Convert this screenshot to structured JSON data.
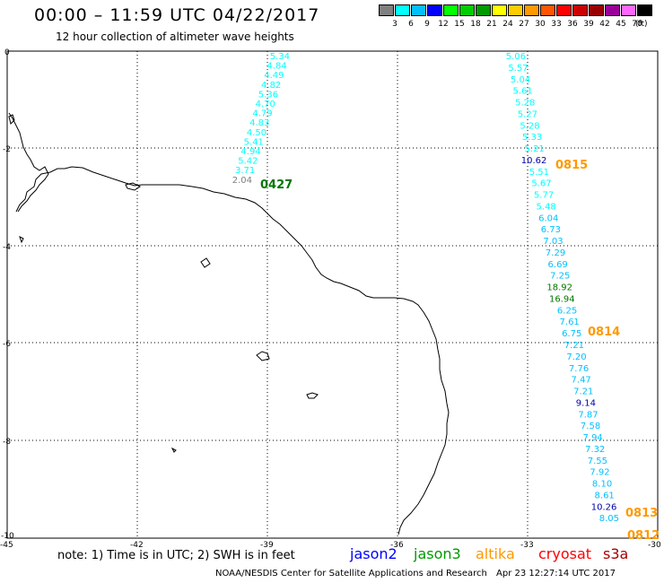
{
  "header": {
    "title": "00:00 – 11:59 UTC 04/22/2017",
    "subtitle": "12 hour collection of altimeter wave heights"
  },
  "colorbar": {
    "unit": "(ft)",
    "bins": [
      {
        "label": "",
        "color": "#808080"
      },
      {
        "label": "3",
        "color": "#00ffff"
      },
      {
        "label": "6",
        "color": "#00c0ff"
      },
      {
        "label": "9",
        "color": "#0000ff"
      },
      {
        "label": "12",
        "color": "#00ff00"
      },
      {
        "label": "15",
        "color": "#00cc00"
      },
      {
        "label": "18",
        "color": "#009900"
      },
      {
        "label": "21",
        "color": "#ffff00"
      },
      {
        "label": "24",
        "color": "#ffcc00"
      },
      {
        "label": "27",
        "color": "#ff9900"
      },
      {
        "label": "30",
        "color": "#ff5500"
      },
      {
        "label": "33",
        "color": "#ff0000"
      },
      {
        "label": "36",
        "color": "#cc0000"
      },
      {
        "label": "39",
        "color": "#990000"
      },
      {
        "label": "42",
        "color": "#990099"
      },
      {
        "label": "45",
        "color": "#ff66ff"
      },
      {
        "label": "70",
        "color": "#000000"
      }
    ]
  },
  "axes": {
    "lat_labels": [
      "0",
      "-2",
      "-4",
      "-6",
      "-8",
      "-10"
    ],
    "lon_labels": [
      "-45",
      "-42",
      "-39",
      "-36",
      "-33",
      "-30"
    ]
  },
  "tracks": {
    "track_a": {
      "values": [
        {
          "v": "5.34",
          "c": "#00ffff"
        },
        {
          "v": "4.84",
          "c": "#00ffff"
        },
        {
          "v": "4.49",
          "c": "#00ffff"
        },
        {
          "v": "4.82",
          "c": "#00ffff"
        },
        {
          "v": "5.36",
          "c": "#00ffff"
        },
        {
          "v": "4.70",
          "c": "#00ffff"
        },
        {
          "v": "4.79",
          "c": "#00ffff"
        },
        {
          "v": "4.83",
          "c": "#00ffff"
        },
        {
          "v": "4.50",
          "c": "#00ffff"
        },
        {
          "v": "5.41",
          "c": "#00ffff"
        },
        {
          "v": "4.94",
          "c": "#00ffff"
        },
        {
          "v": "5.42",
          "c": "#00ffff"
        },
        {
          "v": "3.71",
          "c": "#00ffff"
        },
        {
          "v": "2.04",
          "c": "#808080"
        }
      ],
      "pass_label": {
        "text": "0427",
        "color": "#007700"
      }
    },
    "track_b": {
      "values": [
        {
          "v": "5.06",
          "c": "#00ffff"
        },
        {
          "v": "5.57",
          "c": "#00ffff"
        },
        {
          "v": "5.04",
          "c": "#00ffff"
        },
        {
          "v": "5.61",
          "c": "#00ffff"
        },
        {
          "v": "5.28",
          "c": "#00ffff"
        },
        {
          "v": "5.27",
          "c": "#00ffff"
        },
        {
          "v": "5.28",
          "c": "#00ffff"
        },
        {
          "v": "5.33",
          "c": "#00ffff"
        },
        {
          "v": "5.21",
          "c": "#00ffff"
        },
        {
          "v": "10.62",
          "c": "#0000aa"
        },
        {
          "v": "5.51",
          "c": "#00ffff"
        },
        {
          "v": "5.67",
          "c": "#00ffff"
        },
        {
          "v": "5.77",
          "c": "#00ffff"
        },
        {
          "v": "5.48",
          "c": "#00ffff"
        },
        {
          "v": "6.04",
          "c": "#00c0ff"
        },
        {
          "v": "6.73",
          "c": "#00c0ff"
        },
        {
          "v": "7.03",
          "c": "#00c0ff"
        },
        {
          "v": "7.29",
          "c": "#00c0ff"
        },
        {
          "v": "6.69",
          "c": "#00c0ff"
        },
        {
          "v": "7.25",
          "c": "#00c0ff"
        },
        {
          "v": "18.92",
          "c": "#007700"
        },
        {
          "v": "16.94",
          "c": "#007700"
        },
        {
          "v": "6.25",
          "c": "#00c0ff"
        },
        {
          "v": "7.61",
          "c": "#00c0ff"
        },
        {
          "v": "6.75",
          "c": "#00c0ff"
        },
        {
          "v": "7.21",
          "c": "#00c0ff"
        },
        {
          "v": "7.20",
          "c": "#00c0ff"
        },
        {
          "v": "7.76",
          "c": "#00c0ff"
        },
        {
          "v": "7.47",
          "c": "#00c0ff"
        },
        {
          "v": "7.21",
          "c": "#00c0ff"
        },
        {
          "v": "9.14",
          "c": "#0000aa"
        },
        {
          "v": "7.87",
          "c": "#00c0ff"
        },
        {
          "v": "7.58",
          "c": "#00c0ff"
        },
        {
          "v": "7.94",
          "c": "#00c0ff"
        },
        {
          "v": "7.32",
          "c": "#00c0ff"
        },
        {
          "v": "7.55",
          "c": "#00c0ff"
        },
        {
          "v": "7.92",
          "c": "#00c0ff"
        },
        {
          "v": "8.10",
          "c": "#00c0ff"
        },
        {
          "v": "8.61",
          "c": "#00c0ff"
        },
        {
          "v": "10.26",
          "c": "#0000aa"
        },
        {
          "v": "8.05",
          "c": "#00c0ff"
        }
      ],
      "pass_labels": [
        {
          "text": "0815",
          "color": "#ff9900"
        },
        {
          "text": "0814",
          "color": "#ff9900"
        },
        {
          "text": "0813",
          "color": "#ff9900"
        },
        {
          "text": "0812",
          "color": "#ff9900"
        }
      ]
    }
  },
  "footer": {
    "note": "note:  1) Time is in UTC;  2) SWH is in feet",
    "satellites": [
      {
        "name": "jason2",
        "color": "#0000ff"
      },
      {
        "name": "jason3",
        "color": "#009900"
      },
      {
        "name": "altika",
        "color": "#ff9900"
      },
      {
        "name": "cryosat",
        "color": "#ff0000"
      },
      {
        "name": "s3a",
        "color": "#aa0000"
      }
    ],
    "credit": "NOAA/NESDIS Center for Satellite Applications and Research",
    "timestamp": "Apr 23 12:27:14 UTC 2017"
  }
}
